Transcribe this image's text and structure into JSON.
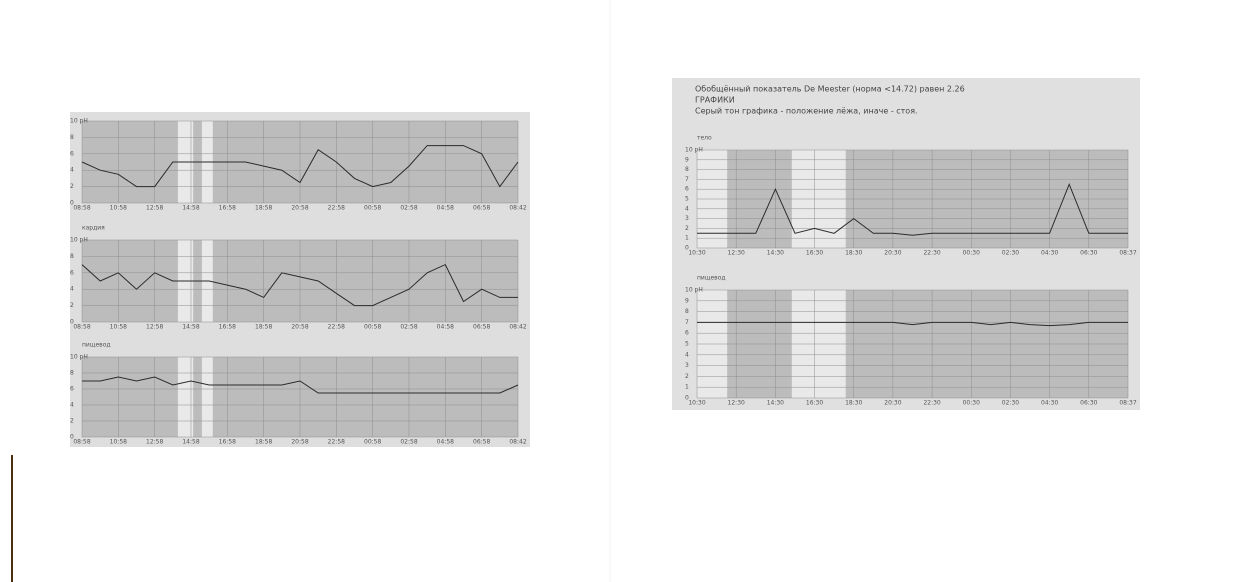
{
  "report": {
    "lines": [
      "Обобщённый показатель De Meester (норма <14.72) равен 2.26",
      "ГРАФИКИ",
      "Серый тон графика - положение лёжа, иначе - стоя."
    ]
  },
  "chart_data": [
    {
      "type": "line",
      "color": "#2b2b2b",
      "grid": true,
      "categories": [
        "08:58",
        null,
        "10:58",
        null,
        "12:58",
        null,
        "14:58",
        null,
        "16:58",
        null,
        "18:58",
        null,
        "20:58",
        null,
        "22:58",
        null,
        "00:58",
        null,
        "02:58",
        null,
        "04:58",
        null,
        "06:58",
        null,
        "08:42"
      ],
      "values": [
        5,
        4,
        3.5,
        2,
        2,
        5,
        5,
        5,
        5,
        5,
        4.5,
        4,
        2.5,
        6.5,
        5,
        3,
        2,
        2.5,
        4.5,
        7,
        7,
        7,
        6,
        2,
        5
      ],
      "ylim": [
        0,
        10
      ],
      "yticks": [
        0,
        2,
        4,
        6,
        8,
        {
          "value": 10,
          "label": "10 pH"
        }
      ]
    },
    {
      "type": "line",
      "title": "кардия",
      "color": "#2b2b2b",
      "grid": true,
      "categories": [
        "08:58",
        null,
        "10:58",
        null,
        "12:58",
        null,
        "14:58",
        null,
        "16:58",
        null,
        "18:58",
        null,
        "20:58",
        null,
        "22:58",
        null,
        "00:58",
        null,
        "02:58",
        null,
        "04:58",
        null,
        "06:58",
        null,
        "08:42"
      ],
      "values": [
        7,
        5,
        6,
        4,
        6,
        5,
        5,
        5,
        4.5,
        4,
        3,
        6,
        5.5,
        5,
        3.5,
        2,
        2,
        3,
        4,
        6,
        7,
        2.5,
        4,
        3,
        3
      ],
      "ylim": [
        0,
        10
      ],
      "yticks": [
        0,
        2,
        4,
        6,
        8,
        {
          "value": 10,
          "label": "10 pH"
        }
      ]
    },
    {
      "type": "line",
      "title": "пищевод",
      "color": "#2b2b2b",
      "grid": true,
      "categories": [
        "08:58",
        null,
        "10:58",
        null,
        "12:58",
        null,
        "14:58",
        null,
        "16:58",
        null,
        "18:58",
        null,
        "20:58",
        null,
        "22:58",
        null,
        "00:58",
        null,
        "02:58",
        null,
        "04:58",
        null,
        "06:58",
        null,
        "08:42"
      ],
      "values": [
        7,
        7,
        7.5,
        7,
        7.5,
        6.5,
        7,
        6.5,
        6.5,
        6.5,
        6.5,
        6.5,
        7,
        5.5,
        5.5,
        5.5,
        5.5,
        5.5,
        5.5,
        5.5,
        5.5,
        5.5,
        5.5,
        5.5,
        6.5
      ],
      "ylim": [
        0,
        10
      ],
      "yticks": [
        0,
        2,
        4,
        6,
        8,
        {
          "value": 10,
          "label": "10 pH"
        }
      ]
    },
    {
      "type": "line",
      "title": "тело",
      "color": "#2b2b2b",
      "grid": true,
      "categories": [
        "10:30",
        null,
        "12:30",
        null,
        "14:30",
        null,
        "16:30",
        null,
        "18:30",
        null,
        "20:30",
        null,
        "22:30",
        null,
        "00:30",
        null,
        "02:30",
        null,
        "04:30",
        null,
        "06:30",
        null,
        "08:37"
      ],
      "values": [
        1.5,
        1.5,
        1.5,
        1.5,
        6,
        1.5,
        2,
        1.5,
        3,
        1.5,
        1.5,
        1.3,
        1.5,
        1.5,
        1.5,
        1.5,
        1.5,
        1.5,
        1.5,
        6.5,
        1.5,
        1.5,
        1.5
      ],
      "ylim": [
        0,
        10
      ],
      "yticks": [
        0,
        1,
        2,
        3,
        4,
        5,
        6,
        7,
        8,
        9,
        {
          "value": 10,
          "label": "10 pH"
        }
      ]
    },
    {
      "type": "line",
      "title": "пищевод",
      "color": "#2b2b2b",
      "grid": true,
      "categories": [
        "10:30",
        null,
        "12:30",
        null,
        "14:30",
        null,
        "16:30",
        null,
        "18:30",
        null,
        "20:30",
        null,
        "22:30",
        null,
        "00:30",
        null,
        "02:30",
        null,
        "04:30",
        null,
        "06:30",
        null,
        "08:37"
      ],
      "values": [
        7,
        7,
        7,
        7,
        7,
        7,
        7,
        7,
        7,
        7,
        7,
        6.8,
        7,
        7,
        7,
        6.8,
        7,
        6.8,
        6.7,
        6.8,
        7,
        7,
        7
      ],
      "ylim": [
        0,
        10
      ],
      "yticks": [
        0,
        1,
        2,
        3,
        4,
        5,
        6,
        7,
        8,
        9,
        {
          "value": 10,
          "label": "10 pH"
        }
      ]
    }
  ]
}
